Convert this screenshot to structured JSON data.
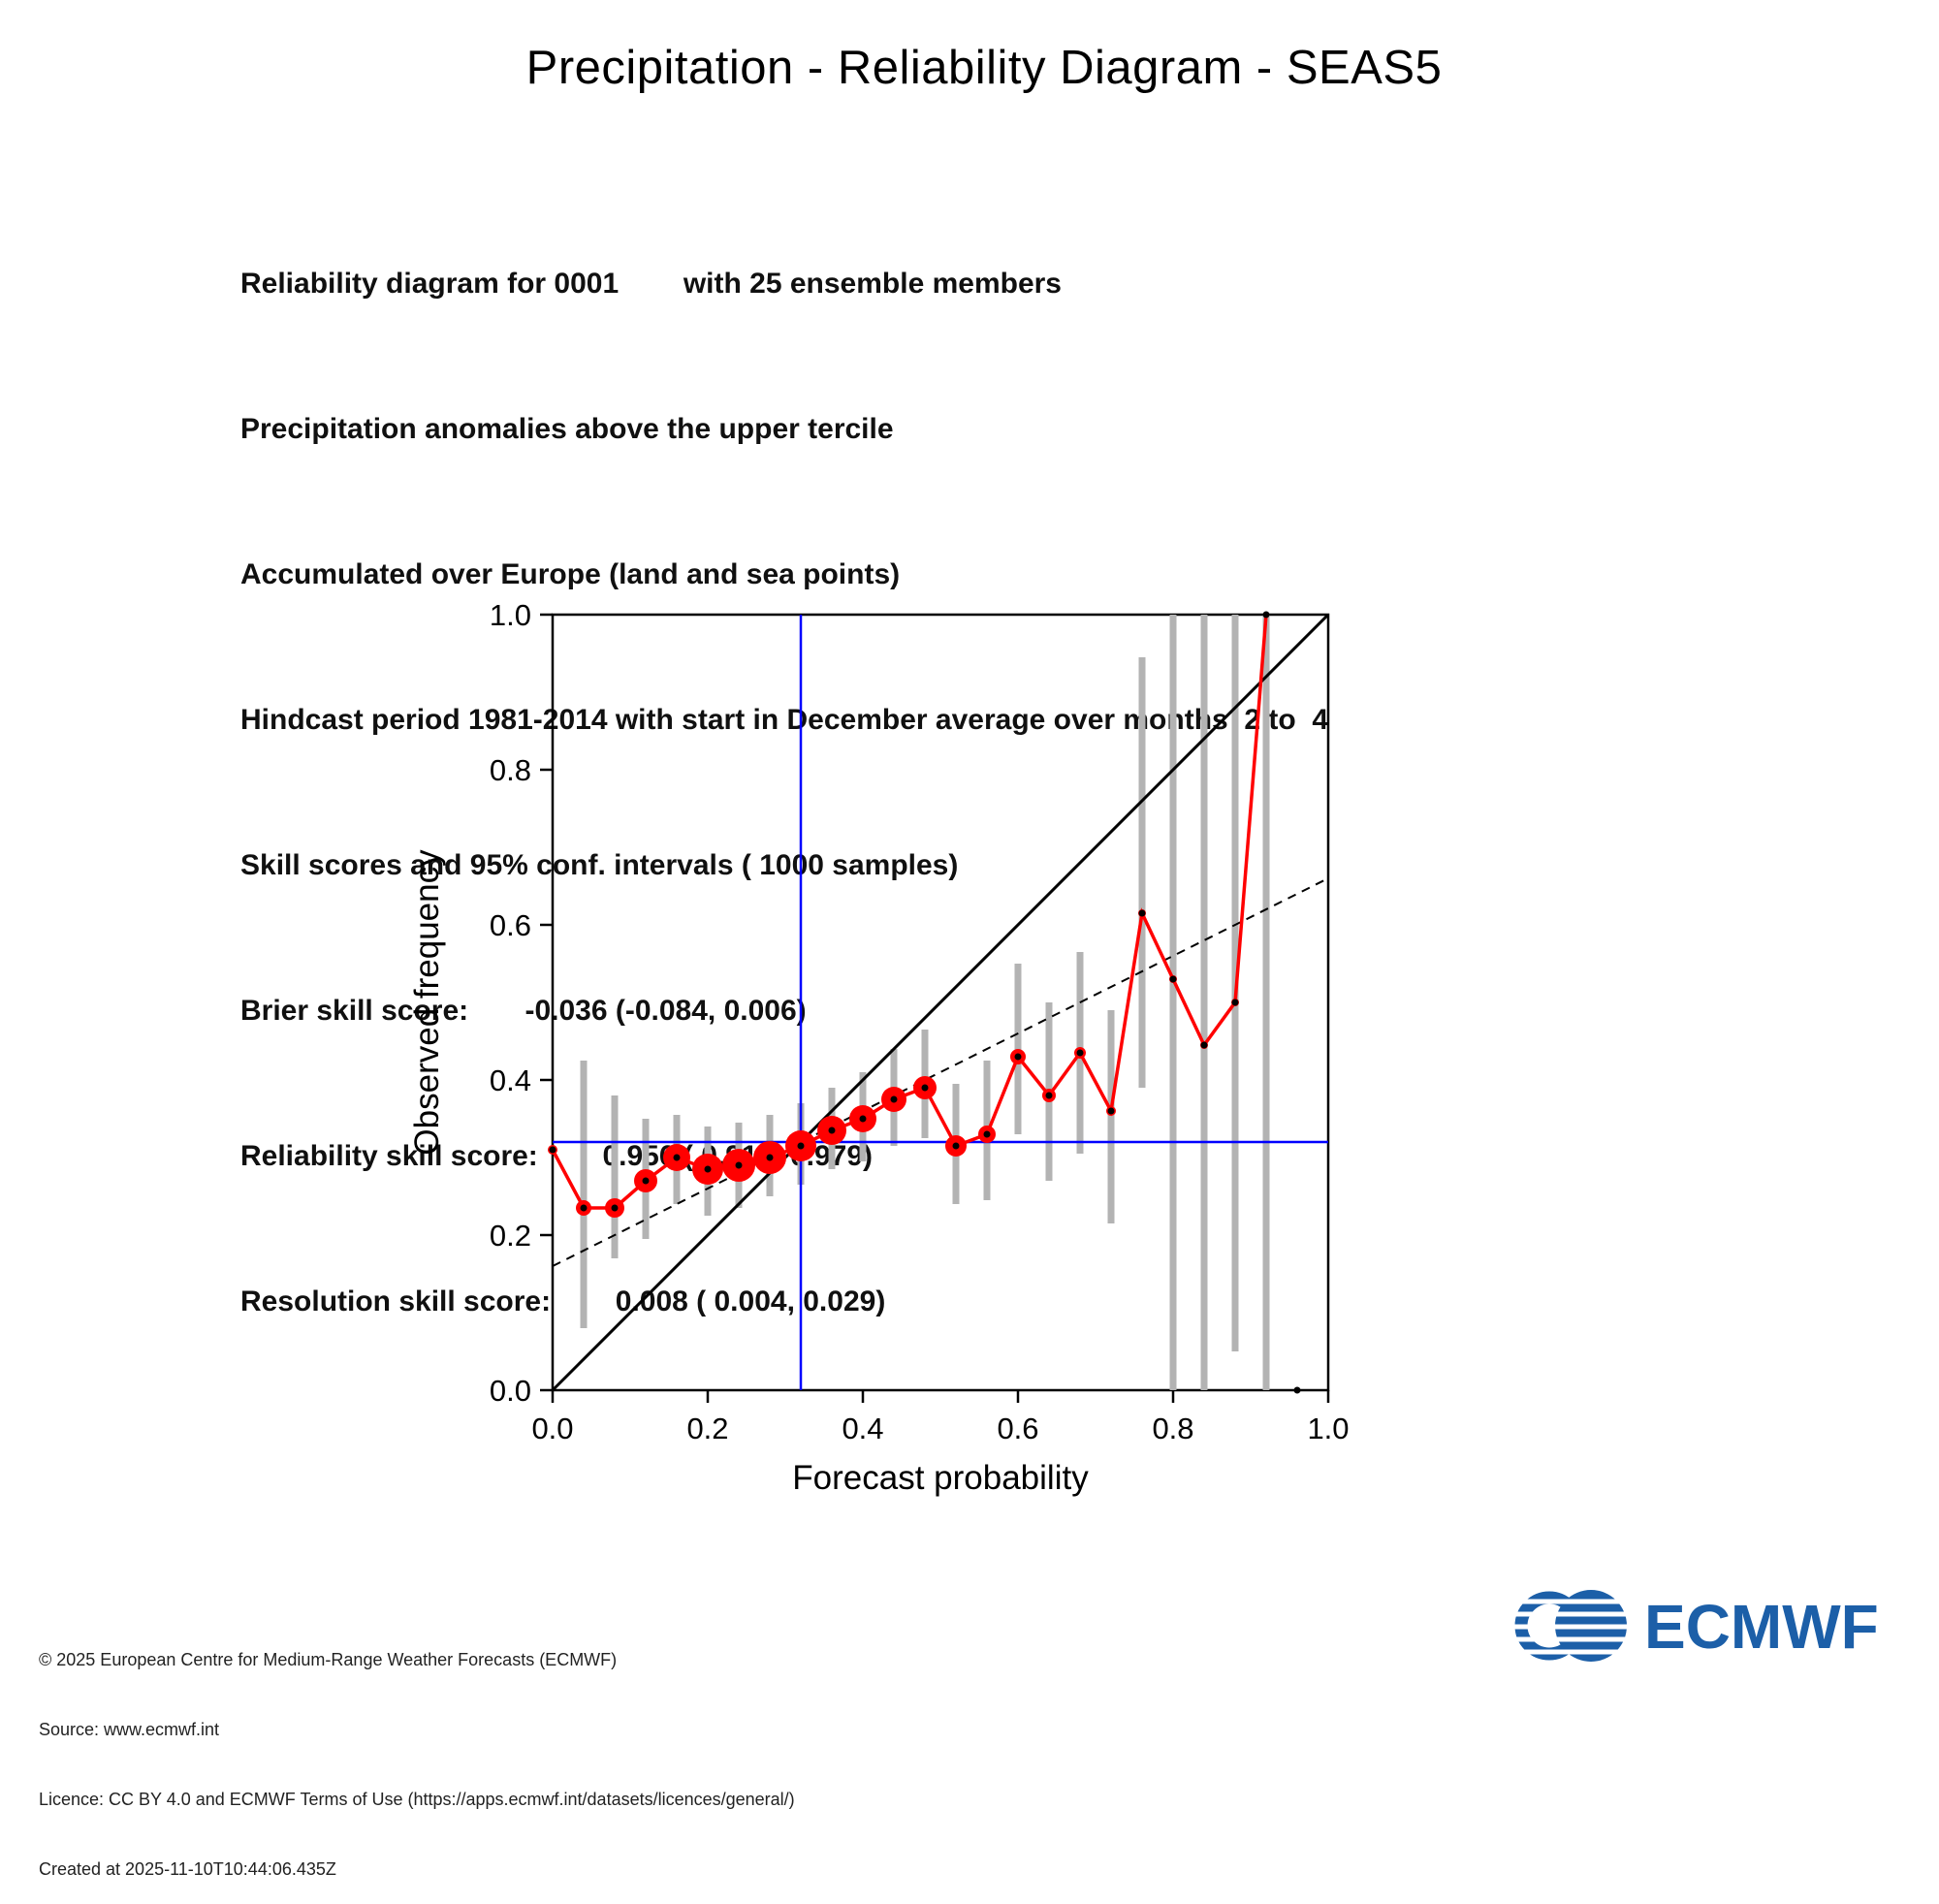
{
  "info_lines": [
    "Reliability diagram for 0001        with 25 ensemble members",
    "Precipitation anomalies above the upper tercile",
    "Accumulated over Europe (land and sea points)",
    "Hindcast period 1981-2014 with start in December average over months  2 to  4",
    "Skill scores and 95% conf. intervals ( 1000 samples)",
    "Brier skill score:       -0.036 (-0.084, 0.006)",
    "Reliability skill score:        0.956 ( 0.910, 0.979)",
    "Resolution skill score:        0.008 ( 0.004, 0.029)"
  ],
  "chart_data": {
    "type": "line",
    "title": "Precipitation - Reliability Diagram - SEAS5",
    "xlabel": "Forecast probability",
    "ylabel": "Observed frequency",
    "xlim": [
      0.0,
      1.0
    ],
    "ylim": [
      0.0,
      1.0
    ],
    "xticks": [
      "0.0",
      "0.2",
      "0.4",
      "0.6",
      "0.8",
      "1.0"
    ],
    "yticks": [
      "0.0",
      "0.2",
      "0.4",
      "0.6",
      "0.8",
      "1.0"
    ],
    "grid": false,
    "legend": "none",
    "climatology_x": 0.32,
    "climatology_y": 0.32,
    "perfect_reliability_line": {
      "x0": 0.0,
      "y0": 0.0,
      "x1": 1.0,
      "y1": 1.0
    },
    "no_skill_line": {
      "x0": 0.0,
      "y0": 0.16,
      "x1": 1.0,
      "y1": 0.66
    },
    "colors": {
      "curve": "#ff0000",
      "climatology": "#0000ff",
      "confidence_bar": "#b3b3b3",
      "diagonal": "#000000"
    },
    "series": [
      {
        "name": "SEAS5 reliability curve with 95% confidence intervals",
        "x": [
          0.0,
          0.04,
          0.08,
          0.12,
          0.16,
          0.2,
          0.24,
          0.28,
          0.32,
          0.36,
          0.4,
          0.44,
          0.48,
          0.52,
          0.56,
          0.6,
          0.64,
          0.68,
          0.72,
          0.76,
          0.8,
          0.84,
          0.88,
          0.92,
          0.96
        ],
        "y": [
          0.31,
          0.235,
          0.235,
          0.27,
          0.3,
          0.285,
          0.29,
          0.3,
          0.315,
          0.335,
          0.35,
          0.375,
          0.39,
          0.315,
          0.33,
          0.43,
          0.38,
          0.435,
          0.36,
          0.615,
          0.53,
          0.445,
          0.5,
          1.0,
          0.0
        ],
        "ci_low": [
          0.31,
          0.08,
          0.17,
          0.195,
          0.24,
          0.225,
          0.235,
          0.25,
          0.265,
          0.285,
          0.295,
          0.315,
          0.325,
          0.24,
          0.245,
          0.33,
          0.27,
          0.305,
          0.215,
          0.39,
          0.0,
          0.0,
          0.05,
          0.0,
          0.0
        ],
        "ci_high": [
          0.31,
          0.425,
          0.38,
          0.35,
          0.355,
          0.34,
          0.345,
          0.355,
          0.37,
          0.39,
          0.41,
          0.44,
          0.465,
          0.395,
          0.425,
          0.55,
          0.5,
          0.565,
          0.49,
          0.945,
          1.0,
          1.0,
          1.0,
          1.0,
          0.0
        ],
        "marker_radius": [
          5,
          8,
          10,
          12,
          14,
          16,
          17,
          17,
          16,
          15,
          14,
          13,
          12,
          11,
          9,
          8,
          7,
          6,
          5,
          4,
          4,
          4,
          4,
          3,
          0
        ]
      }
    ]
  },
  "footer": {
    "lines": [
      "© 2025 European Centre for Medium-Range Weather Forecasts (ECMWF)",
      "Source: www.ecmwf.int",
      "Licence: CC BY 4.0 and ECMWF Terms of Use (https://apps.ecmwf.int/datasets/licences/general/)",
      "Created at 2025-11-10T10:44:06.435Z"
    ],
    "logo_text": "ECMWF"
  }
}
